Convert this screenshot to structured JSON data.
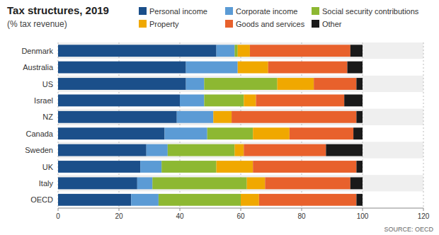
{
  "chart_data": {
    "type": "bar",
    "orientation": "horizontal",
    "stacked": true,
    "title": "Tax structures, 2019",
    "subtitle": "(% tax revenue)",
    "annotations": [
      "SOURCE: OECD"
    ],
    "categories": [
      "Denmark",
      "Australia",
      "US",
      "Israel",
      "NZ",
      "Canada",
      "Sweden",
      "UK",
      "Italy",
      "OECD"
    ],
    "series": [
      {
        "name": "Personal income",
        "color": "#1b4f8a",
        "values": [
          52,
          42,
          42,
          40,
          39,
          35,
          29,
          27,
          26,
          24
        ]
      },
      {
        "name": "Corporate income",
        "color": "#5b9bd5",
        "values": [
          6,
          17,
          6,
          8,
          12,
          14,
          7,
          7,
          5,
          9
        ]
      },
      {
        "name": "Social security contributions",
        "color": "#8db832",
        "values": [
          1,
          0,
          24,
          13,
          0,
          15,
          22,
          18,
          31,
          27
        ]
      },
      {
        "name": "Property",
        "color": "#f0a800",
        "values": [
          4,
          10,
          12,
          4,
          6,
          12,
          3,
          12,
          6,
          6
        ]
      },
      {
        "name": "Goods and services",
        "color": "#e8612c",
        "values": [
          33,
          26,
          14,
          29,
          41,
          21,
          27,
          34,
          28,
          32
        ]
      },
      {
        "name": "Other",
        "color": "#1a1a1a",
        "values": [
          4,
          5,
          2,
          6,
          2,
          3,
          12,
          2,
          4,
          2
        ]
      }
    ],
    "xlim": [
      0,
      120
    ],
    "xticks": [
      0,
      20,
      40,
      60,
      80,
      100,
      120
    ],
    "grid": true,
    "legend": "top"
  }
}
